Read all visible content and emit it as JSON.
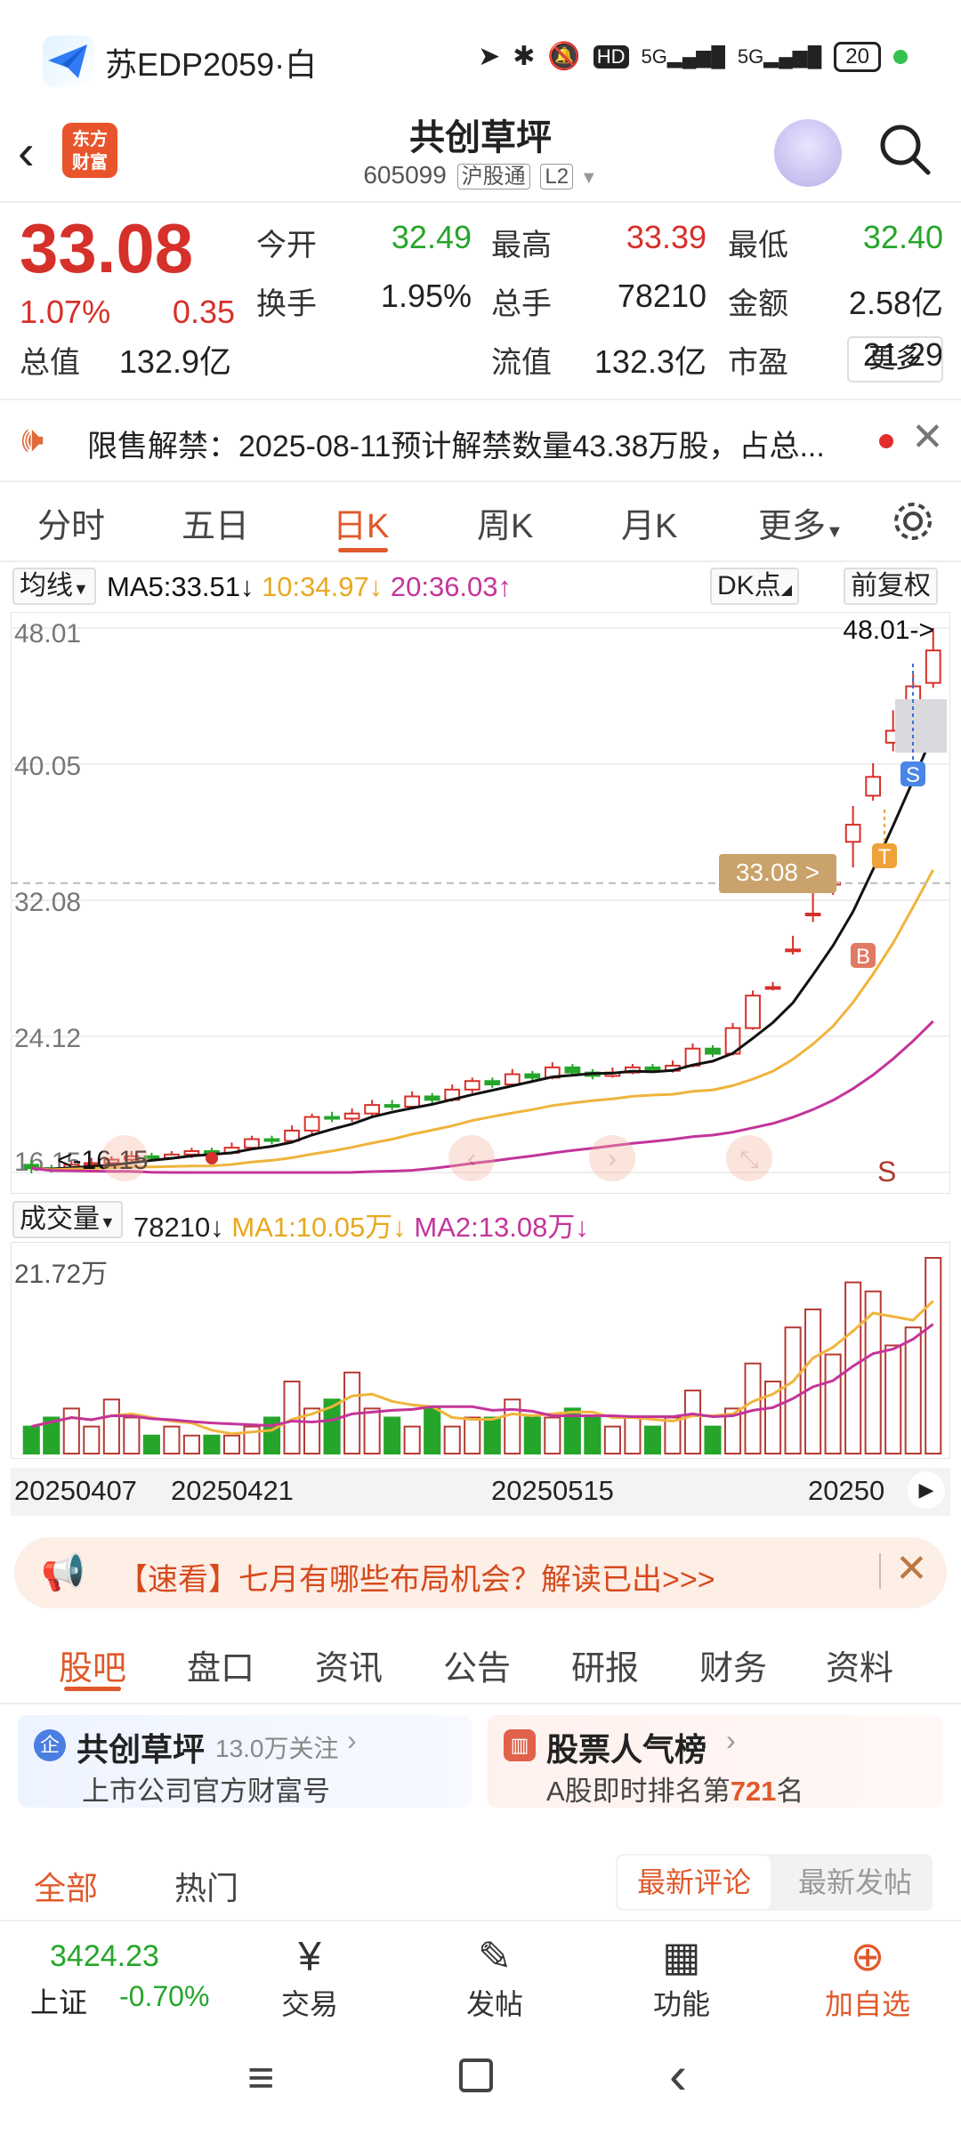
{
  "status": {
    "carrier": "苏EDP2059·白",
    "hd": "HD",
    "net1": "5G",
    "net2": "5G",
    "battery": "20"
  },
  "header": {
    "title": "共创草坪",
    "code": "605099",
    "tag1": "沪股通",
    "tag2": "L2",
    "logo": "东方\n财富"
  },
  "quote": {
    "price": "33.08",
    "change_pct": "1.07%",
    "change_amt": "0.35",
    "rows": [
      [
        {
          "l": "今开",
          "v": "32.49",
          "c": "green"
        },
        {
          "l": "最高",
          "v": "33.39",
          "c": "red"
        },
        {
          "l": "最低",
          "v": "32.40",
          "c": "green"
        }
      ],
      [
        {
          "l": "换手",
          "v": "1.95%",
          "c": "dark"
        },
        {
          "l": "总手",
          "v": "78210",
          "c": "dark"
        },
        {
          "l": "金额",
          "v": "2.58亿",
          "c": "dark"
        }
      ],
      [
        {
          "l": "总值",
          "v": "132.9亿",
          "c": "dark"
        },
        {
          "l": "流值",
          "v": "132.3亿",
          "c": "dark"
        },
        {
          "l": "市盈",
          "v": "21.29",
          "c": "dark"
        }
      ]
    ],
    "more": "更多"
  },
  "notice": {
    "text": "限售解禁：2025-08-11预计解禁数量43.38万股，占总..."
  },
  "tabs": [
    "分时",
    "五日",
    "日K",
    "周K",
    "月K",
    "更多"
  ],
  "indicators": {
    "ma_label": "均线",
    "ma5": "MA5:33.51",
    "ma10": "10:34.97",
    "ma20": "20:36.03",
    "dk": "DK点",
    "adjust": "前复权"
  },
  "kline": {
    "y_labels": [
      "48.01",
      "40.05",
      "32.08",
      "24.12",
      "16.15"
    ],
    "max_label": "48.01->",
    "min_label": "<-16.15",
    "current_tag": "33.08 >",
    "markers": [
      "S",
      "T",
      "B",
      "S"
    ]
  },
  "volume": {
    "label": "成交量",
    "value": "78210",
    "ma1": "MA1:10.05万",
    "ma2": "MA2:13.08万",
    "max": "21.72万",
    "dates": [
      "20250407",
      "20250421",
      "20250515",
      "20250"
    ]
  },
  "banner": {
    "text": "【速看】七月有哪些布局机会？解读已出>>>"
  },
  "subtabs": [
    "股吧",
    "盘口",
    "资讯",
    "公告",
    "研报",
    "财务",
    "资料"
  ],
  "card1": {
    "name": "共创草坪",
    "follow": "13.0万关注",
    "desc": "上市公司官方财富号",
    "badge": "企"
  },
  "card2": {
    "name": "股票人气榜",
    "desc_prefix": "A股即时排名第",
    "rank": "721",
    "desc_suffix": "名"
  },
  "feed": {
    "all": "全部",
    "hot": "热门",
    "latest_comment": "最新评论",
    "latest_post": "最新发帖"
  },
  "index": {
    "value": "3424.23",
    "name": "上证",
    "change": "-0.70%"
  },
  "bottom_nav": [
    "交易",
    "发帖",
    "功能",
    "加自选"
  ],
  "colors": {
    "up": "#d6302a",
    "down": "#26a52b",
    "accent": "#e0592a",
    "ma5": "#111111",
    "ma10": "#f0b43c",
    "ma20": "#c4349a"
  }
}
